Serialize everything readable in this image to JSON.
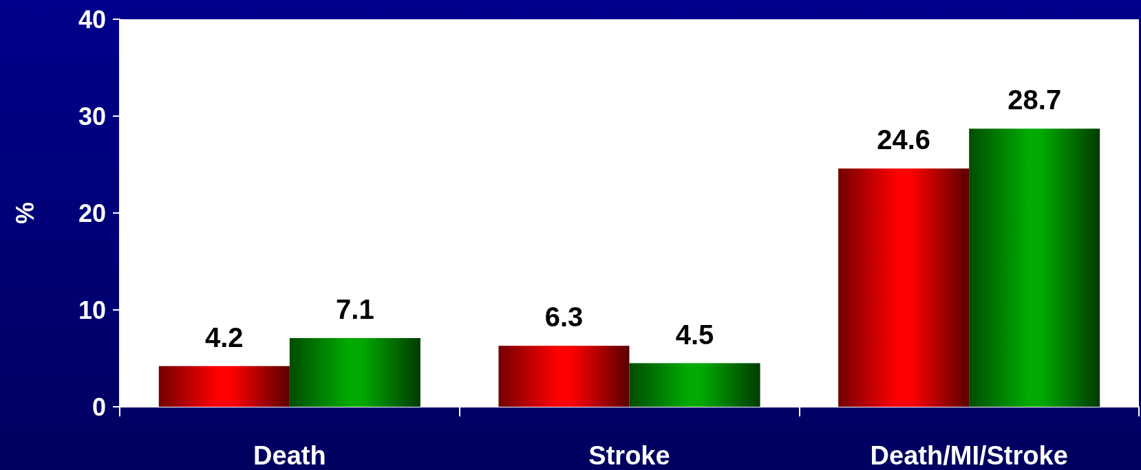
{
  "chart_data": {
    "type": "bar",
    "categories": [
      "Death",
      "Stroke",
      "Death/MI/Stroke"
    ],
    "ylabel": "%",
    "ylim": [
      0,
      40
    ],
    "yticks": [
      0,
      10,
      20,
      30,
      40
    ],
    "grid": false,
    "data_labels": true,
    "series": [
      {
        "color": "#ff0000",
        "values": [
          4.2,
          6.3,
          24.6
        ]
      },
      {
        "color": "#00aa00",
        "values": [
          7.1,
          4.5,
          28.7
        ]
      }
    ]
  }
}
